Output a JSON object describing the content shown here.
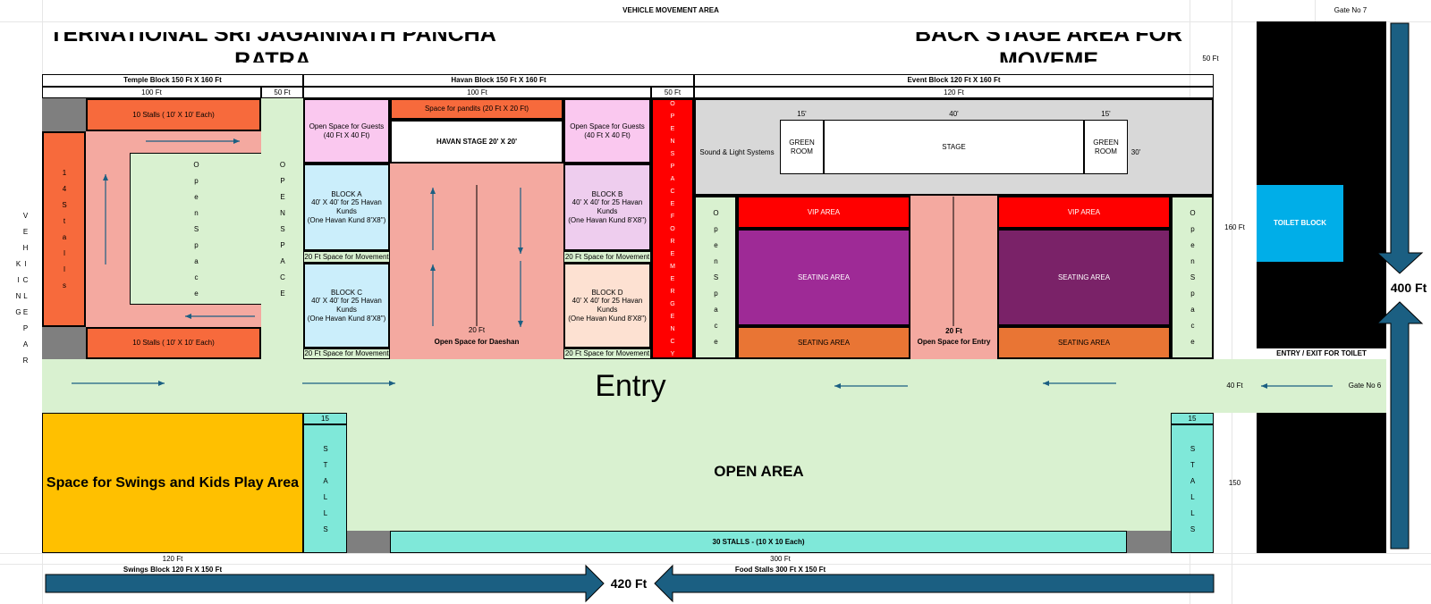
{
  "header": {
    "vehicle_movement": "VEHICLE MOVEMENT AREA",
    "gate7": "Gate No 7",
    "title_left": "TERNATIONAL SRI JAGANNATH PANCHA RATRA",
    "title_right": "BACK STAGE AREA FOR MOVEME"
  },
  "blocks": {
    "temple": "Temple Block 150 Ft X 160 Ft",
    "havan": "Havan Block 150 Ft X 160 Ft",
    "event": "Event Block 120 Ft X 160 Ft",
    "swings": "Swings Block 120 Ft X 150 Ft",
    "food": "Food Stalls 300 Ft X 150 Ft"
  },
  "dims": {
    "d100a": "100 Ft",
    "d50a": "50 Ft",
    "d100b": "100 Ft",
    "d50b": "50 Ft",
    "d120": "120 Ft",
    "d50ft": "50 Ft",
    "d160": "160 Ft",
    "d40": "40 Ft",
    "d150": "150",
    "d400": "400 Ft",
    "d420": "420 Ft",
    "d120b": "120 Ft",
    "d300": "300 Ft",
    "s15a": "15'",
    "s40": "40'",
    "s15b": "15'",
    "s30": "30'",
    "c15a": "15",
    "c15b": "15"
  },
  "temple": {
    "stalls_top": "10 Stalls ( 10' X 10' Each)",
    "stalls_bottom": "10 Stalls ( 10' X 10' Each)",
    "stalls_side": "1 4   S t a l l s",
    "open_space": "O p e n   S p a c e",
    "open_space2": "O P E N   S P A C E"
  },
  "havan": {
    "guests_a": "Open Space for Guests\n(40 Ft X 40 Ft)",
    "guests_b": "Open Space for Guests\n(40 Ft X 40 Ft)",
    "pandits": "Space for pandits (20 Ft X 20 Ft)",
    "stage": "HAVAN STAGE 20' X 20'",
    "block_a": "BLOCK A\n40' X 40' for 25 Havan\nKunds\n(One Havan Kund 8'X8\")",
    "block_b": "BLOCK B\n40' X 40' for 25 Havan\nKunds\n(One Havan Kund 8'X8\")",
    "block_c": "BLOCK C\n40' X 40' for 25 Havan\nKunds\n(One Havan Kund 8'X8\")",
    "block_d": "BLOCK D\n40' X 40' for 25 Havan\nKunds\n(One Havan Kund 8'X8\")",
    "move1": "20 Ft Space for Movement",
    "move2": "20 Ft Space for Movement",
    "move3": "20 Ft Space for Movement",
    "move4": "20 Ft Space for Movement",
    "daeshan_ft": "20 Ft",
    "daeshan": "Open Space for Daeshan",
    "emergency": "O P E N   S P A C E   F O R   E M E R G E N C Y"
  },
  "event": {
    "sound": "Sound & Light Systems",
    "green_left": "GREEN\nROOM",
    "stage": "STAGE",
    "green_right": "GREEN\nROOM",
    "vip_left": "VIP AREA",
    "vip_right": "VIP AREA",
    "seat_left": "SEATING AREA",
    "seat_right": "SEATING AREA",
    "seat_left2": "SEATING AREA",
    "seat_right2": "SEATING AREA",
    "entry_ft": "20 Ft",
    "entry_space": "Open Space for Entry",
    "open_left": "O p e n   S p a c e",
    "open_right": "O p e n   S p a c e"
  },
  "right": {
    "toilet": "TOILET BLOCK",
    "toilet_entry": "ENTRY / EXIT FOR TOILET",
    "gate6": "Gate No 6"
  },
  "lower": {
    "entry": "Entry",
    "vehicle_parking": "V E H I C L E   P A R K I N G",
    "swings": "Space for Swings and Kids Play Area",
    "stalls_l": "S T A L L S",
    "stalls_r": "S T A L L S",
    "open_area": "OPEN AREA",
    "stalls30": "30 STALLS - (10 X 10 Each)"
  },
  "colors": {
    "stall": "#f76a3c",
    "salmon": "#f4a9a0",
    "mint": "#d9f1d0",
    "pink": "#fac8ef",
    "lightblue": "#cbeefb",
    "lavender": "#eecdee",
    "peach": "#fde1d2",
    "red": "#ff0000",
    "grey": "#d8d8d8",
    "purple": "#9e2a96",
    "darkpurple": "#7a2268",
    "orange": "#e97534",
    "toilet": "#00aee8",
    "swing": "#ffc000",
    "teal": "#7fe8d9",
    "arrow": "#1b5f82"
  }
}
